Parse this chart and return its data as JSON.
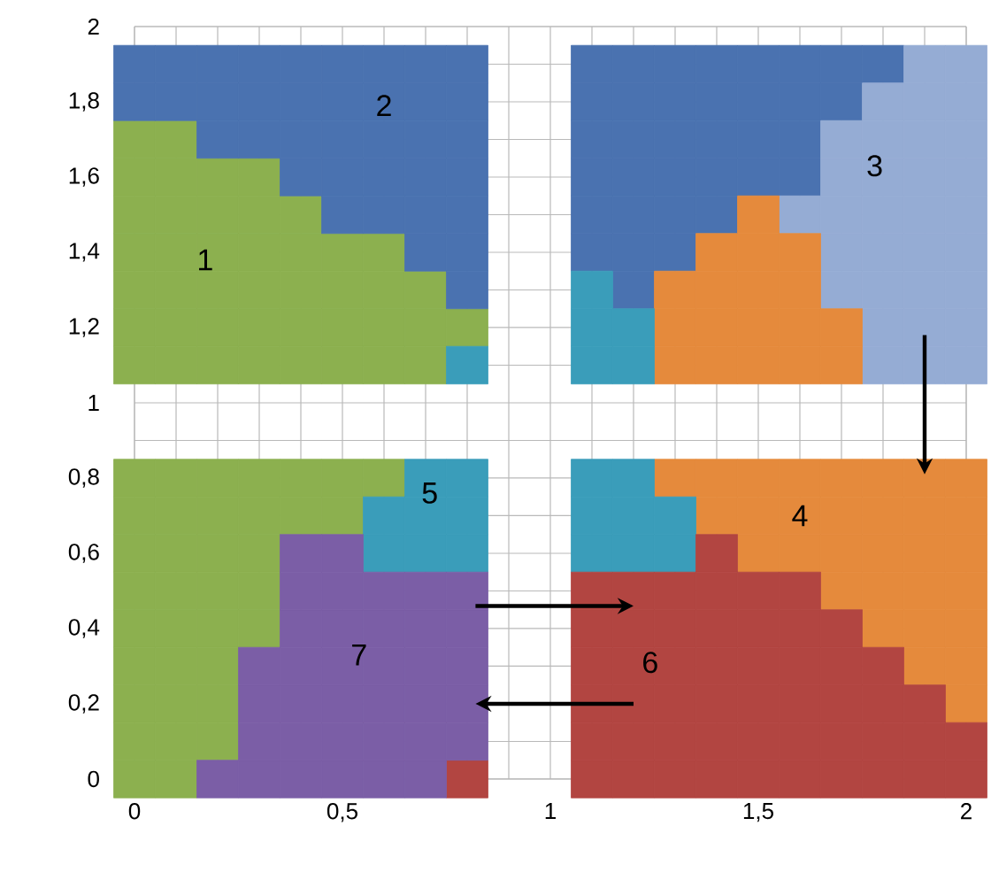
{
  "chart_data": {
    "type": "scatter",
    "marker": "square",
    "grid": true,
    "xlim": [
      0,
      2
    ],
    "ylim": [
      0,
      2
    ],
    "xticks": [
      0,
      {
        "value": 0.1,
        "label": null
      },
      {
        "value": 0.2,
        "label": null
      },
      {
        "value": 0.3,
        "label": null
      },
      {
        "value": 0.4,
        "label": null
      },
      {
        "value": 0.5,
        "label": "0,5"
      },
      {
        "value": 0.6,
        "label": null
      },
      {
        "value": 0.7,
        "label": null
      },
      {
        "value": 0.8,
        "label": null
      },
      {
        "value": 0.9,
        "label": null
      },
      1,
      {
        "value": 1.1,
        "label": null
      },
      {
        "value": 1.2,
        "label": null
      },
      {
        "value": 1.3,
        "label": null
      },
      {
        "value": 1.4,
        "label": null
      },
      {
        "value": 1.5,
        "label": "1,5"
      },
      {
        "value": 1.6,
        "label": null
      },
      {
        "value": 1.7,
        "label": null
      },
      {
        "value": 1.8,
        "label": null
      },
      {
        "value": 1.9,
        "label": null
      },
      2
    ],
    "yticks": [
      0,
      {
        "value": 0.1,
        "label": null
      },
      {
        "value": 0.2,
        "label": "0,2"
      },
      {
        "value": 0.3,
        "label": null
      },
      {
        "value": 0.4,
        "label": "0,4"
      },
      {
        "value": 0.5,
        "label": null
      },
      {
        "value": 0.6,
        "label": "0,6"
      },
      {
        "value": 0.7,
        "label": null
      },
      {
        "value": 0.8,
        "label": "0,8"
      },
      {
        "value": 0.9,
        "label": null
      },
      1,
      {
        "value": 1.1,
        "label": null
      },
      {
        "value": 1.2,
        "label": "1,2"
      },
      {
        "value": 1.3,
        "label": null
      },
      {
        "value": 1.4,
        "label": "1,4"
      },
      {
        "value": 1.5,
        "label": null
      },
      {
        "value": 1.6,
        "label": "1,6"
      },
      {
        "value": 1.7,
        "label": null
      },
      {
        "value": 1.8,
        "label": "1,8"
      },
      {
        "value": 1.9,
        "label": null
      },
      2
    ],
    "series": [
      {
        "color": "#8cb04f",
        "x": [
          0,
          0.1,
          0,
          0.1,
          0.2,
          0.3,
          0,
          0.1,
          0.2,
          0.3,
          0.4,
          0,
          0.1,
          0.2,
          0.3,
          0.4,
          0.5,
          0.6,
          0,
          0.1,
          0.2,
          0.3,
          0.4,
          0.5,
          0.6,
          0.7,
          0,
          0.1,
          0.2,
          0.3,
          0.4,
          0.5,
          0.6,
          0.7,
          0.8,
          0,
          0.1,
          0.2,
          0.3,
          0.4,
          0.5,
          0.6,
          0.7,
          0,
          0.1,
          0.2,
          0.3,
          0.4,
          0.5,
          0.6,
          0,
          0.1,
          0.2,
          0.3,
          0.4,
          0.5,
          0,
          0.1,
          0.2,
          0.3,
          0,
          0.1,
          0.2,
          0.3,
          0,
          0.1,
          0.2,
          0.3,
          0,
          0.1,
          0.2,
          0,
          0.1,
          0.2,
          0,
          0.1,
          0.2,
          0,
          0.1
        ],
        "values": [
          1.7,
          1.7,
          1.6,
          1.6,
          1.6,
          1.6,
          1.5,
          1.5,
          1.5,
          1.5,
          1.5,
          1.4,
          1.4,
          1.4,
          1.4,
          1.4,
          1.4,
          1.4,
          1.3,
          1.3,
          1.3,
          1.3,
          1.3,
          1.3,
          1.3,
          1.3,
          1.2,
          1.2,
          1.2,
          1.2,
          1.2,
          1.2,
          1.2,
          1.2,
          1.2,
          1.1,
          1.1,
          1.1,
          1.1,
          1.1,
          1.1,
          1.1,
          1.1,
          0.8,
          0.8,
          0.8,
          0.8,
          0.8,
          0.8,
          0.8,
          0.7,
          0.7,
          0.7,
          0.7,
          0.7,
          0.7,
          0.6,
          0.6,
          0.6,
          0.6,
          0.5,
          0.5,
          0.5,
          0.5,
          0.4,
          0.4,
          0.4,
          0.4,
          0.3,
          0.3,
          0.3,
          0.2,
          0.2,
          0.2,
          0.1,
          0.1,
          0.1,
          0,
          0
        ]
      },
      {
        "color": "#4a72b0",
        "x": [
          0,
          0.1,
          0.2,
          0.3,
          0.4,
          0.5,
          0.6,
          0.7,
          0.8,
          0,
          0.1,
          0.2,
          0.3,
          0.4,
          0.5,
          0.6,
          0.7,
          0.8,
          0.2,
          0.3,
          0.4,
          0.5,
          0.6,
          0.7,
          0.8,
          0.4,
          0.5,
          0.6,
          0.7,
          0.8,
          0.5,
          0.6,
          0.7,
          0.8,
          0.7,
          0.8,
          0.8,
          1.1,
          1.2,
          1.3,
          1.4,
          1.5,
          1.6,
          1.7,
          1.8,
          1.1,
          1.2,
          1.3,
          1.4,
          1.5,
          1.6,
          1.7,
          1.1,
          1.2,
          1.3,
          1.4,
          1.5,
          1.6,
          1.1,
          1.2,
          1.3,
          1.4,
          1.5,
          1.6,
          1.1,
          1.2,
          1.3,
          1.4,
          1.1,
          1.2,
          1.3,
          1.2
        ],
        "values": [
          1.9,
          1.9,
          1.9,
          1.9,
          1.9,
          1.9,
          1.9,
          1.9,
          1.9,
          1.8,
          1.8,
          1.8,
          1.8,
          1.8,
          1.8,
          1.8,
          1.8,
          1.8,
          1.7,
          1.7,
          1.7,
          1.7,
          1.7,
          1.7,
          1.7,
          1.6,
          1.6,
          1.6,
          1.6,
          1.6,
          1.5,
          1.5,
          1.5,
          1.5,
          1.4,
          1.4,
          1.3,
          1.9,
          1.9,
          1.9,
          1.9,
          1.9,
          1.9,
          1.9,
          1.9,
          1.8,
          1.8,
          1.8,
          1.8,
          1.8,
          1.8,
          1.8,
          1.7,
          1.7,
          1.7,
          1.7,
          1.7,
          1.7,
          1.6,
          1.6,
          1.6,
          1.6,
          1.6,
          1.6,
          1.5,
          1.5,
          1.5,
          1.5,
          1.4,
          1.4,
          1.4,
          1.3
        ]
      },
      {
        "color": "#95acd4",
        "x": [
          1.9,
          2,
          1.8,
          1.9,
          2,
          1.7,
          1.8,
          1.9,
          2,
          1.7,
          1.8,
          1.9,
          2,
          1.6,
          1.7,
          1.8,
          1.9,
          2,
          1.7,
          1.8,
          1.9,
          2,
          1.7,
          1.8,
          1.9,
          2,
          1.8,
          1.9,
          2,
          1.8,
          1.9,
          2
        ],
        "values": [
          1.9,
          1.9,
          1.8,
          1.8,
          1.8,
          1.7,
          1.7,
          1.7,
          1.7,
          1.6,
          1.6,
          1.6,
          1.6,
          1.5,
          1.5,
          1.5,
          1.5,
          1.5,
          1.4,
          1.4,
          1.4,
          1.4,
          1.3,
          1.3,
          1.3,
          1.3,
          1.2,
          1.2,
          1.2,
          1.1,
          1.1,
          1.1
        ]
      },
      {
        "color": "#e58a3c",
        "x": [
          1.5,
          1.4,
          1.5,
          1.6,
          1.3,
          1.4,
          1.5,
          1.6,
          1.3,
          1.4,
          1.5,
          1.6,
          1.7,
          1.3,
          1.4,
          1.5,
          1.6,
          1.7,
          1.3,
          1.4,
          1.5,
          1.6,
          1.7,
          1.8,
          1.9,
          2,
          1.4,
          1.5,
          1.6,
          1.7,
          1.8,
          1.9,
          2,
          1.5,
          1.6,
          1.7,
          1.8,
          1.9,
          2,
          1.7,
          1.8,
          1.9,
          2,
          1.8,
          1.9,
          2,
          1.9,
          2,
          2
        ],
        "values": [
          1.5,
          1.4,
          1.4,
          1.4,
          1.3,
          1.3,
          1.3,
          1.3,
          1.2,
          1.2,
          1.2,
          1.2,
          1.2,
          1.1,
          1.1,
          1.1,
          1.1,
          1.1,
          0.8,
          0.8,
          0.8,
          0.8,
          0.8,
          0.8,
          0.8,
          0.8,
          0.7,
          0.7,
          0.7,
          0.7,
          0.7,
          0.7,
          0.7,
          0.6,
          0.6,
          0.6,
          0.6,
          0.6,
          0.6,
          0.5,
          0.5,
          0.5,
          0.5,
          0.4,
          0.4,
          0.4,
          0.3,
          0.3,
          0.2
        ]
      },
      {
        "color": "#3a9dba",
        "x": [
          0.8,
          1.1,
          1.1,
          1.2,
          1.1,
          1.2,
          0.7,
          0.8,
          0.6,
          0.7,
          0.8,
          0.6,
          0.7,
          0.8,
          1.1,
          1.2,
          1.1,
          1.2,
          1.3,
          1.1,
          1.2,
          1.3
        ],
        "values": [
          1.1,
          1.3,
          1.2,
          1.2,
          1.1,
          1.1,
          0.8,
          0.8,
          0.7,
          0.7,
          0.7,
          0.6,
          0.6,
          0.6,
          0.8,
          0.8,
          0.7,
          0.7,
          0.7,
          0.6,
          0.6,
          0.6
        ]
      },
      {
        "color": "#b24541",
        "x": [
          0.8,
          1.4,
          1.1,
          1.2,
          1.3,
          1.4,
          1.5,
          1.6,
          1.1,
          1.2,
          1.3,
          1.4,
          1.5,
          1.6,
          1.7,
          1.1,
          1.2,
          1.3,
          1.4,
          1.5,
          1.6,
          1.7,
          1.8,
          1.1,
          1.2,
          1.3,
          1.4,
          1.5,
          1.6,
          1.7,
          1.8,
          1.9,
          1.1,
          1.2,
          1.3,
          1.4,
          1.5,
          1.6,
          1.7,
          1.8,
          1.9,
          2,
          1.1,
          1.2,
          1.3,
          1.4,
          1.5,
          1.6,
          1.7,
          1.8,
          1.9,
          2
        ],
        "values": [
          0,
          0.6,
          0.5,
          0.5,
          0.5,
          0.5,
          0.5,
          0.5,
          0.4,
          0.4,
          0.4,
          0.4,
          0.4,
          0.4,
          0.4,
          0.3,
          0.3,
          0.3,
          0.3,
          0.3,
          0.3,
          0.3,
          0.3,
          0.2,
          0.2,
          0.2,
          0.2,
          0.2,
          0.2,
          0.2,
          0.2,
          0.2,
          0.1,
          0.1,
          0.1,
          0.1,
          0.1,
          0.1,
          0.1,
          0.1,
          0.1,
          0.1,
          0,
          0,
          0,
          0,
          0,
          0,
          0,
          0,
          0,
          0
        ]
      },
      {
        "color": "#7b5ea6",
        "x": [
          0.2,
          0.3,
          0.4,
          0.5,
          0.6,
          0.7,
          0.3,
          0.4,
          0.5,
          0.6,
          0.7,
          0.8,
          0.3,
          0.4,
          0.5,
          0.6,
          0.7,
          0.8,
          0.3,
          0.4,
          0.5,
          0.6,
          0.7,
          0.8,
          0.4,
          0.5,
          0.6,
          0.7,
          0.8,
          0.4,
          0.5,
          0.6,
          0.7,
          0.8,
          0.4,
          0.5
        ],
        "values": [
          0,
          0,
          0,
          0,
          0,
          0,
          0.1,
          0.1,
          0.1,
          0.1,
          0.1,
          0.1,
          0.2,
          0.2,
          0.2,
          0.2,
          0.2,
          0.2,
          0.3,
          0.3,
          0.3,
          0.3,
          0.3,
          0.3,
          0.4,
          0.4,
          0.4,
          0.4,
          0.4,
          0.5,
          0.5,
          0.5,
          0.5,
          0.5,
          0.6,
          0.6
        ]
      }
    ],
    "annotations": [
      {
        "text": "1",
        "x": 0.17,
        "y": 1.38
      },
      {
        "text": "2",
        "x": 0.6,
        "y": 1.79
      },
      {
        "text": "3",
        "x": 1.78,
        "y": 1.63
      },
      {
        "text": "4",
        "x": 1.6,
        "y": 0.7
      },
      {
        "text": "5",
        "x": 0.71,
        "y": 0.76
      },
      {
        "text": "6",
        "x": 1.24,
        "y": 0.31
      },
      {
        "text": "7",
        "x": 0.54,
        "y": 0.33
      }
    ]
  }
}
